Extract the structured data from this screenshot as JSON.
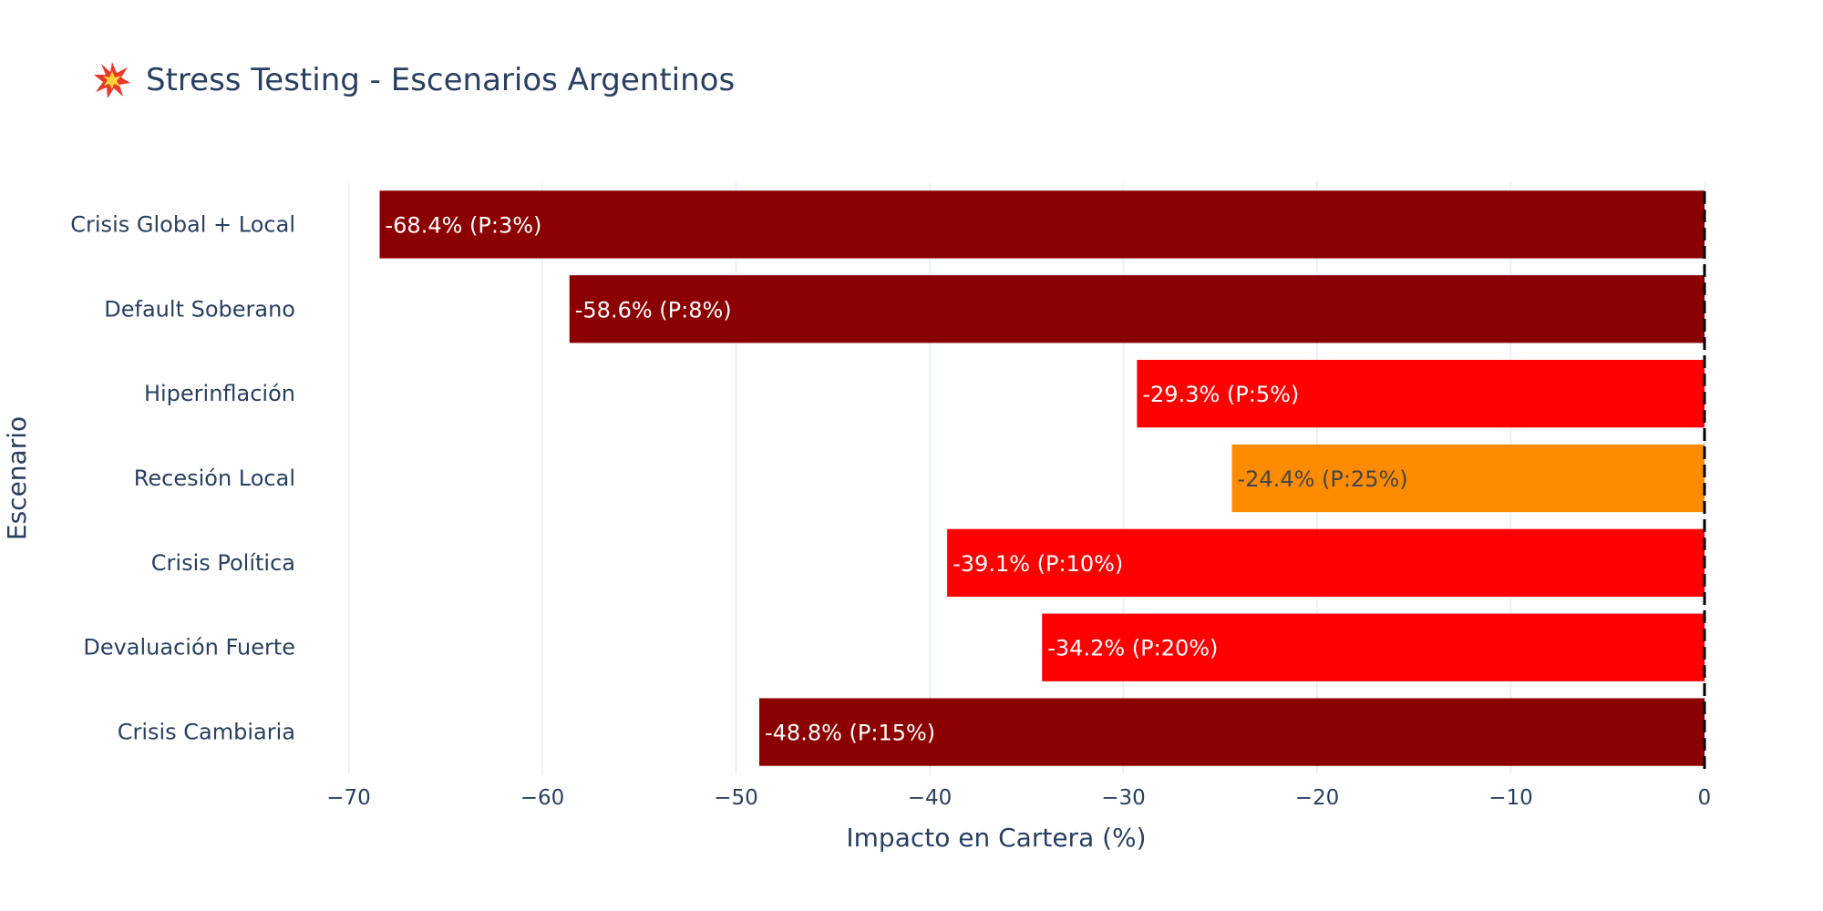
{
  "title": {
    "icon": "collision-icon",
    "text": "Stress Testing - Escenarios Argentinos"
  },
  "chart_data": {
    "type": "bar",
    "orientation": "horizontal",
    "categories": [
      "Crisis Global + Local",
      "Default Soberano",
      "Hiperinflación",
      "Recesión Local",
      "Crisis Política",
      "Devaluación Fuerte",
      "Crisis Cambiaria"
    ],
    "values": [
      -68.4,
      -58.6,
      -29.3,
      -24.4,
      -39.1,
      -34.2,
      -48.8
    ],
    "labels": [
      "-68.4% (P:3%)",
      "-58.6% (P:8%)",
      "-29.3% (P:5%)",
      "-24.4% (P:25%)",
      "-39.1% (P:10%)",
      "-34.2% (P:20%)",
      "-48.8% (P:15%)"
    ],
    "colors": [
      "#8b0000",
      "#8b0000",
      "#ff0000",
      "#ff8c00",
      "#ff0000",
      "#ff0000",
      "#8b0000"
    ],
    "label_colors": [
      "#ffffff",
      "#ffffff",
      "#ffffff",
      "#444444",
      "#ffffff",
      "#ffffff",
      "#ffffff"
    ],
    "xlabel": "Impacto en Cartera (%)",
    "ylabel": "Escenario",
    "xlim": [
      -72,
      0
    ],
    "xticks": [
      -70,
      -60,
      -50,
      -40,
      -30,
      -20,
      -10,
      0
    ],
    "xtick_labels": [
      "−70",
      "−60",
      "−50",
      "−40",
      "−30",
      "−20",
      "−10",
      "0"
    ],
    "reference_line": {
      "x": 0,
      "style": "dashed",
      "color": "#000000"
    },
    "grid": true,
    "legend": "none"
  }
}
